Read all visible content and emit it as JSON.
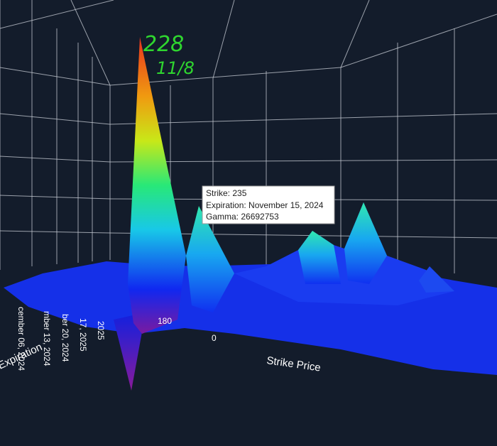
{
  "annotation": {
    "value": "228",
    "date": "11/8"
  },
  "tooltip": {
    "lines": [
      "Strike: 235",
      "Expiration: November 15, 2024",
      "Gamma: 26692753"
    ]
  },
  "axes": {
    "x_title": "Strike Price",
    "x_ticks": [
      "180",
      "0"
    ],
    "y_title": "Expiration",
    "y_ticks": [
      "cember 06, 2024",
      "mber 13, 2024",
      "ber 20, 2024",
      "17, 2025",
      "2025"
    ]
  }
}
